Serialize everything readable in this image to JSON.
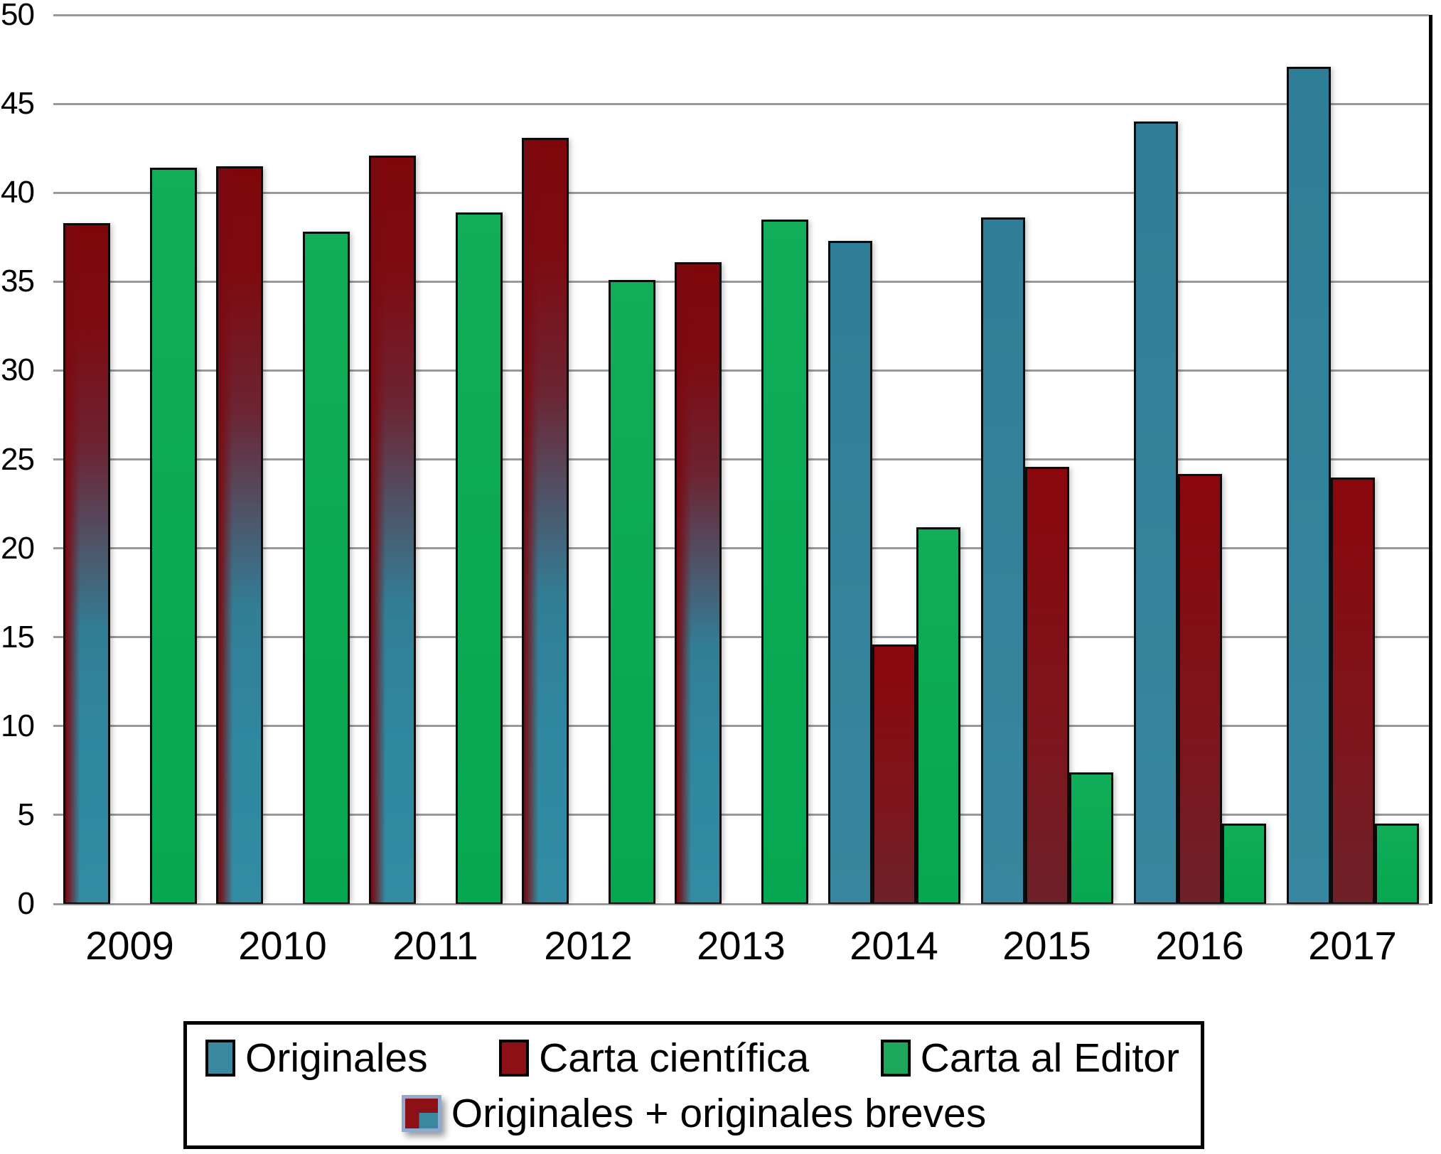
{
  "chart_data": {
    "type": "bar",
    "title": "",
    "categories": [
      "2009",
      "2010",
      "2011",
      "2012",
      "2013",
      "2014",
      "2015",
      "2016",
      "2017"
    ],
    "ylim": [
      0,
      50
    ],
    "ytick_step": 5,
    "grid": "horizontal-gray",
    "legend_position": "bottom-box",
    "bar_order": [
      "mixed",
      "originales",
      "carta",
      "editor"
    ],
    "series": [
      {
        "key": "originales",
        "name": "Originales",
        "color": "#35859E",
        "values": [
          null,
          null,
          null,
          null,
          null,
          37.3,
          38.6,
          44,
          47.1
        ]
      },
      {
        "key": "carta",
        "name": "Carta científica",
        "color": "#8C0B10",
        "values": [
          null,
          null,
          null,
          null,
          null,
          14.6,
          24.6,
          24.2,
          24
        ]
      },
      {
        "key": "editor",
        "name": "Carta al Editor",
        "color": "#12AD58",
        "values": [
          41.4,
          37.8,
          38.9,
          35.1,
          38.5,
          21.2,
          7.4,
          4.5,
          4.5
        ]
      },
      {
        "key": "mixed",
        "name": "Originales + originales breves",
        "color_top": "#7F070C",
        "color_mid": "#515064",
        "color_bottom": "#2F87A0",
        "values": [
          38.3,
          41.5,
          42.1,
          43.1,
          36.1,
          null,
          null,
          null,
          null
        ]
      }
    ]
  },
  "axis": {
    "y_tick_labels": [
      "0",
      "5",
      "10",
      "15",
      "20",
      "25",
      "30",
      "35",
      "40",
      "45",
      "50"
    ],
    "x_tick_labels": [
      "2009",
      "2010",
      "2011",
      "2012",
      "2013",
      "2014",
      "2015",
      "2016",
      "2017"
    ]
  },
  "legend": {
    "row1": [
      {
        "label": "Originales",
        "swatch": "originales"
      },
      {
        "label": "Carta científica",
        "swatch": "carta"
      },
      {
        "label": "Carta al Editor",
        "swatch": "editor"
      }
    ],
    "row2": [
      {
        "label": "Originales + originales breves",
        "swatch": "mixed"
      }
    ]
  },
  "colors": {
    "teal": "#35859E",
    "dark_red": "#8C0B10",
    "green": "#12AD58",
    "gradient_slate": "#515064",
    "gridline": "#999999",
    "mixed_swatch_border": "#8FAACD",
    "background": "#FFFFFF",
    "text": "#000000"
  }
}
